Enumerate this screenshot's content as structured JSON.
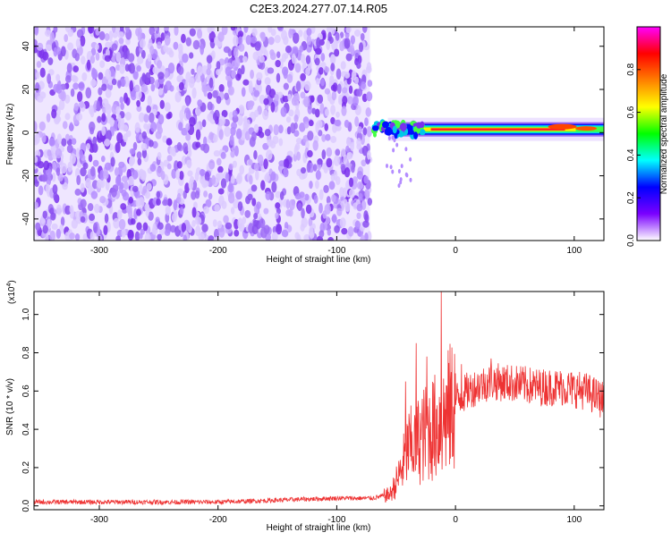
{
  "page": {
    "title": "C2E3.2024.277.07.14.R05"
  },
  "chart_data": [
    {
      "type": "heatmap",
      "xlabel": "Height of straight line (km)",
      "ylabel": "Frequency (Hz)",
      "xlim": [
        -355,
        125
      ],
      "ylim": [
        -50,
        49
      ],
      "xticks": [
        -300,
        -200,
        -100,
        0,
        100
      ],
      "xtick_labels": [
        "-300",
        "-200",
        "-100",
        "0",
        "100"
      ],
      "yticks": [
        -40,
        -20,
        0,
        20,
        40
      ],
      "ytick_labels": [
        "-40",
        "-20",
        "0",
        "20",
        "40"
      ],
      "regions": [
        {
          "desc": "noise",
          "x": [
            -355,
            -72
          ],
          "y": [
            -50,
            49
          ],
          "amplitude": 0.15
        },
        {
          "desc": "signal",
          "x": [
            -72,
            125
          ],
          "y": [
            -1,
            4
          ],
          "amplitude": 0.8
        }
      ],
      "colorbar": {
        "label": "Normalized spectral amplitude",
        "range": [
          0,
          1
        ],
        "ticks": [
          0.0,
          0.2,
          0.4,
          0.6,
          0.8
        ],
        "tick_labels": [
          "0.0",
          "0.2",
          "0.4",
          "0.6",
          "0.8"
        ],
        "colors": [
          "#ffffff",
          "#7a00ff",
          "#0000ff",
          "#00ffff",
          "#00ff00",
          "#ffff00",
          "#ff7f00",
          "#ff0000",
          "#ff00ff"
        ]
      }
    },
    {
      "type": "line",
      "xlabel": "Height of straight line (km)",
      "ylabel": "SNR (10 * v/v)",
      "multiplier": "(x10",
      "multiplier_exp": "4",
      "multiplier_close": ")",
      "color": "#ee3333",
      "xlim": [
        -355,
        125
      ],
      "ylim": [
        -0.02,
        1.12
      ],
      "xticks": [
        -300,
        -200,
        -100,
        0,
        100
      ],
      "xtick_labels": [
        "-300",
        "-200",
        "-100",
        "0",
        "100"
      ],
      "yticks": [
        0.0,
        0.2,
        0.4,
        0.6,
        0.8,
        1.0
      ],
      "ytick_labels": [
        "0.0",
        "0.2",
        "0.4",
        "0.6",
        "0.8",
        "1.0"
      ],
      "x": [
        -355,
        -300,
        -250,
        -200,
        -170,
        -150,
        -100,
        -70,
        -55,
        -50,
        -45,
        -40,
        -35,
        -30,
        -25,
        -20,
        -15,
        -10,
        -5,
        0,
        10,
        20,
        30,
        50,
        70,
        90,
        110,
        125
      ],
      "y": [
        0.02,
        0.02,
        0.02,
        0.02,
        0.025,
        0.03,
        0.04,
        0.04,
        0.06,
        0.12,
        0.2,
        0.3,
        0.32,
        0.35,
        0.38,
        0.4,
        0.42,
        0.45,
        0.5,
        0.55,
        0.6,
        0.63,
        0.65,
        0.64,
        0.62,
        0.62,
        0.6,
        0.55
      ],
      "spikes": [
        {
          "x": -42,
          "y": 0.65
        },
        {
          "x": -33,
          "y": 0.85
        },
        {
          "x": -24,
          "y": 0.78
        },
        {
          "x": -12,
          "y": 1.12
        },
        {
          "x": 5,
          "y": 0.74
        },
        {
          "x": 30,
          "y": 0.77
        }
      ]
    }
  ]
}
